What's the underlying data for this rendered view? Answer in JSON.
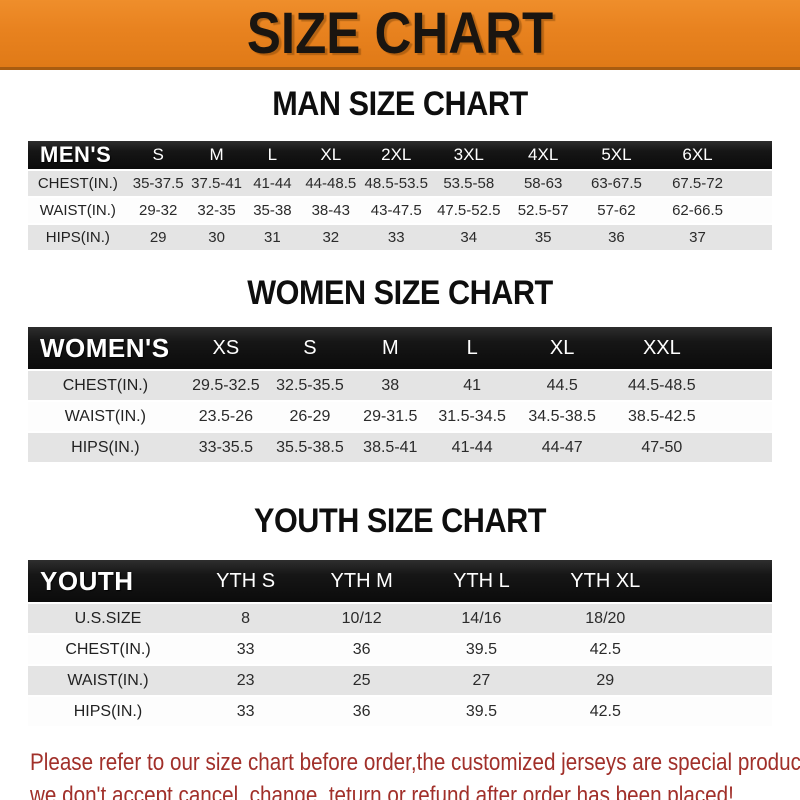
{
  "banner": {
    "title": "SIZE CHART"
  },
  "men": {
    "heading": "MAN SIZE CHART",
    "header": [
      "MEN'S",
      "S",
      "M",
      "L",
      "XL",
      "2XL",
      "3XL",
      "4XL",
      "5XL",
      "6XL"
    ],
    "rows": [
      [
        "CHEST(IN.)",
        "35-37.5",
        "37.5-41",
        "41-44",
        "44-48.5",
        "48.5-53.5",
        "53.5-58",
        "58-63",
        "63-67.5",
        "67.5-72"
      ],
      [
        "WAIST(IN.)",
        "29-32",
        "32-35",
        "35-38",
        "38-43",
        "43-47.5",
        "47.5-52.5",
        "52.5-57",
        "57-62",
        "62-66.5"
      ],
      [
        "HIPS(IN.)",
        "29",
        "30",
        "31",
        "32",
        "33",
        "34",
        "35",
        "36",
        "37"
      ]
    ]
  },
  "women": {
    "heading": "WOMEN SIZE CHART",
    "header": [
      "WOMEN'S",
      "XS",
      "S",
      "M",
      "L",
      "XL",
      "XXL"
    ],
    "rows": [
      [
        "CHEST(IN.)",
        "29.5-32.5",
        "32.5-35.5",
        "38",
        "41",
        "44.5",
        "44.5-48.5"
      ],
      [
        "WAIST(IN.)",
        "23.5-26",
        "26-29",
        "29-31.5",
        "31.5-34.5",
        "34.5-38.5",
        "38.5-42.5"
      ],
      [
        "HIPS(IN.)",
        "33-35.5",
        "35.5-38.5",
        "38.5-41",
        "41-44",
        "44-47",
        "47-50"
      ]
    ]
  },
  "youth": {
    "heading": "YOUTH SIZE CHART",
    "header": [
      "YOUTH",
      "YTH S",
      "YTH M",
      "YTH L",
      "YTH XL"
    ],
    "rows": [
      [
        "U.S.SIZE",
        "8",
        "10/12",
        "14/16",
        "18/20"
      ],
      [
        "CHEST(IN.)",
        "33",
        "36",
        "39.5",
        "42.5"
      ],
      [
        "WAIST(IN.)",
        "23",
        "25",
        "27",
        "29"
      ],
      [
        "HIPS(IN.)",
        "33",
        "36",
        "39.5",
        "42.5"
      ]
    ]
  },
  "footer": {
    "line1": "Please refer to our size chart before order,the customized jerseys are special products,",
    "line2": "we don't accept cancel, change, teturn or refund after order has been placed!"
  },
  "colors": {
    "banner_orange": "#E8821F",
    "banner_border": "#A85C10",
    "header_bar_black": "#161616",
    "row_gray": "#E4E4E4",
    "row_white": "#FDFDFD",
    "footer_red": "#A1302A"
  }
}
